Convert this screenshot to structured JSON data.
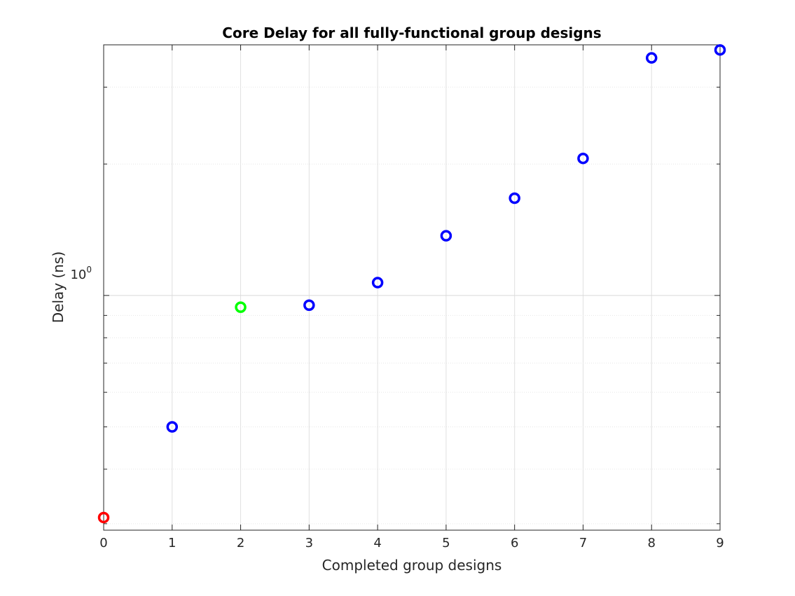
{
  "chart_data": {
    "type": "scatter",
    "title": "Core Delay for all fully-functional group designs",
    "xlabel": "Completed group designs",
    "ylabel": "Delay (ns)",
    "xlim": [
      0,
      9
    ],
    "ylim": [
      0.29,
      3.75
    ],
    "yscale": "log",
    "grid": true,
    "x_ticks": [
      "0",
      "1",
      "2",
      "3",
      "4",
      "5",
      "6",
      "7",
      "8",
      "9"
    ],
    "y_tick_label": {
      "base": "10",
      "exponent": "0",
      "value": 1
    },
    "x": [
      0,
      1,
      2,
      3,
      4,
      5,
      6,
      7,
      8,
      9
    ],
    "y": [
      0.31,
      0.5,
      0.94,
      0.95,
      1.07,
      1.37,
      1.67,
      2.06,
      3.5,
      3.65
    ],
    "point_colors": [
      "#ff0000",
      "#0000ff",
      "#00ff00",
      "#0000ff",
      "#0000ff",
      "#0000ff",
      "#0000ff",
      "#0000ff",
      "#0000ff",
      "#0000ff"
    ],
    "marker": "circle"
  }
}
